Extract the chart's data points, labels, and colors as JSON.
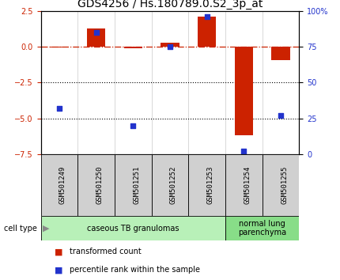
{
  "title": "GDS4256 / Hs.180789.0.S2_3p_at",
  "samples": [
    "GSM501249",
    "GSM501250",
    "GSM501251",
    "GSM501252",
    "GSM501253",
    "GSM501254",
    "GSM501255"
  ],
  "transformed_count": [
    -0.05,
    1.3,
    -0.1,
    0.3,
    2.1,
    -6.2,
    -0.9
  ],
  "percentile_rank": [
    32,
    85,
    20,
    75,
    96,
    2,
    27
  ],
  "ylim_left": [
    -7.5,
    2.5
  ],
  "ylim_right": [
    0,
    100
  ],
  "yticks_left": [
    2.5,
    0,
    -2.5,
    -5,
    -7.5
  ],
  "yticks_right": [
    100,
    75,
    50,
    25,
    0
  ],
  "ytick_labels_right": [
    "100%",
    "75",
    "50",
    "25",
    "0"
  ],
  "hlines_dotted": [
    -2.5,
    -5.0
  ],
  "hline_dashdot": 0.0,
  "bar_color": "#cc2200",
  "dot_color": "#2233cc",
  "background_color": "#ffffff",
  "sample_box_color": "#d0d0d0",
  "cell_groups": [
    {
      "label": "caseous TB granulomas",
      "samples": [
        0,
        1,
        2,
        3,
        4
      ],
      "color": "#b8f0b8"
    },
    {
      "label": "normal lung\nparenchyma",
      "samples": [
        5,
        6
      ],
      "color": "#88dd88"
    }
  ],
  "legend_items": [
    {
      "color": "#cc2200",
      "label": "transformed count"
    },
    {
      "color": "#2233cc",
      "label": "percentile rank within the sample"
    }
  ],
  "cell_type_label": "cell type",
  "title_fontsize": 10,
  "tick_fontsize": 7,
  "label_fontsize": 7
}
